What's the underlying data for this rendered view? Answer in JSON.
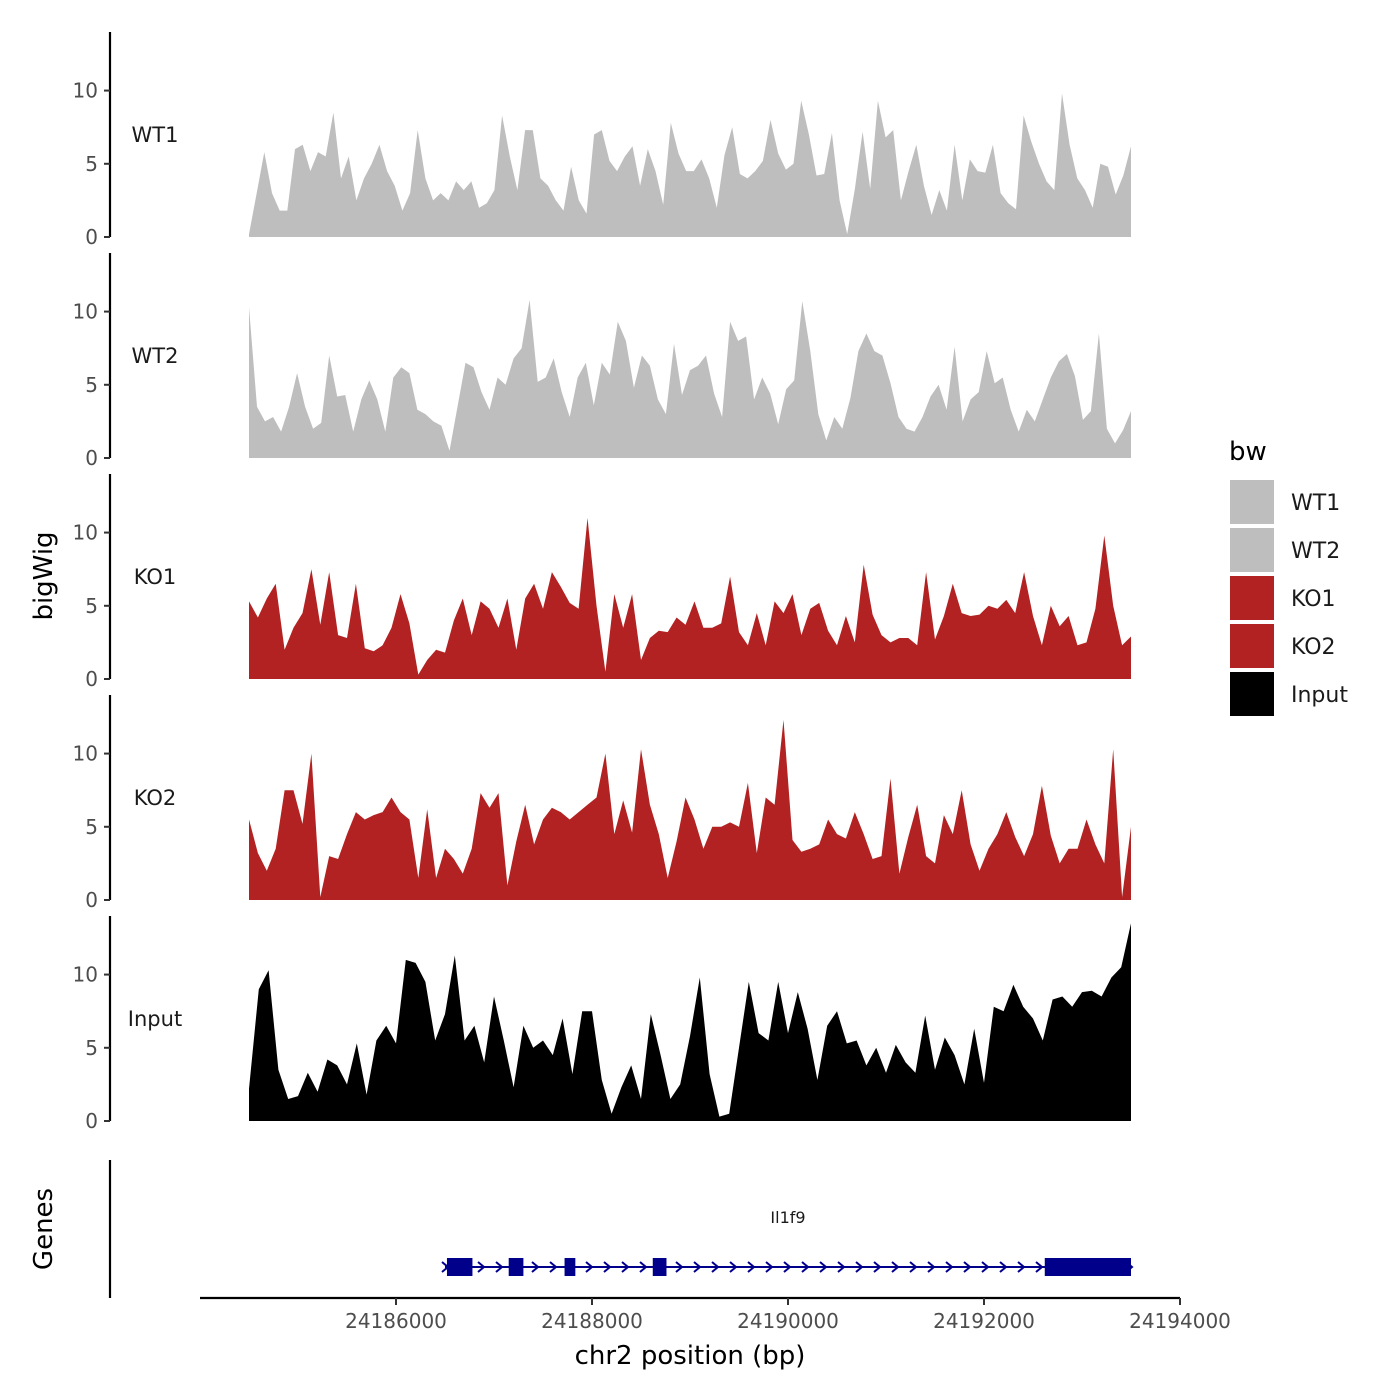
{
  "chart_data": {
    "type": "area",
    "title": "",
    "ylabel": "bigWig",
    "genes_label": "Genes",
    "xlabel": "chr2 position (bp)",
    "xlim": [
      24184000,
      24194000
    ],
    "data_range": [
      24184500,
      24193500
    ],
    "x_ticks": [
      "24186000",
      "24188000",
      "24190000",
      "24192000",
      "24194000"
    ],
    "x_tick_values": [
      24186000,
      24188000,
      24190000,
      24192000,
      24194000
    ],
    "ylim": [
      0,
      14
    ],
    "y_ticks": [
      "0",
      "5",
      "10"
    ],
    "y_tick_values": [
      0,
      5,
      10
    ],
    "legend": {
      "title": "bw",
      "position": "right",
      "entries": [
        {
          "label": "WT1",
          "color": "#bebebe"
        },
        {
          "label": "WT2",
          "color": "#bebebe"
        },
        {
          "label": "KO1",
          "color": "#b22222"
        },
        {
          "label": "KO2",
          "color": "#b22222"
        },
        {
          "label": "Input",
          "color": "#000000"
        }
      ]
    },
    "series": [
      {
        "name": "WT1",
        "color": "#bebebe",
        "values": [
          0.2,
          3,
          5.8,
          3,
          1.8,
          1.8,
          6,
          6.3,
          4.5,
          5.8,
          5.5,
          8.5,
          4,
          5.5,
          2.5,
          4,
          5,
          6.3,
          4.5,
          3.5,
          1.8,
          3,
          7.3,
          4,
          2.5,
          3,
          2.5,
          3.8,
          3.2,
          3.8,
          2,
          2.3,
          3.2,
          8.3,
          5.5,
          3.2,
          7.3,
          7.3,
          4,
          3.5,
          2.5,
          1.8,
          4.8,
          2.5,
          1.6,
          7,
          7.3,
          5.2,
          4.5,
          5.5,
          6.2,
          3.5,
          6,
          4.5,
          2.2,
          7.8,
          5.7,
          4.5,
          4.5,
          5.3,
          4,
          2,
          5.6,
          7.5,
          4.3,
          4,
          4.5,
          5.2,
          8,
          5.7,
          4.6,
          5,
          9.3,
          7,
          4.2,
          4.3,
          7.1,
          2.5,
          0.2,
          3.3,
          7.2,
          3.3,
          9.3,
          6.8,
          7.3,
          2.5,
          4.5,
          6.3,
          3.5,
          1.5,
          3.2,
          1.8,
          6.3,
          2.5,
          5.3,
          4.5,
          4.4,
          6.3,
          3,
          2.3,
          1.9,
          8.3,
          6.5,
          5,
          3.8,
          3.2,
          9.8,
          6.3,
          4,
          3.2,
          2,
          5,
          4.8,
          2.9,
          4.2,
          6.2
        ]
      },
      {
        "name": "WT2",
        "color": "#bebebe",
        "values": [
          10.3,
          3.5,
          2.5,
          2.8,
          1.8,
          3.5,
          5.8,
          3.5,
          2,
          2.4,
          7,
          4.2,
          4.3,
          1.8,
          4,
          5.3,
          4,
          1.8,
          5.5,
          6.2,
          5.8,
          3.3,
          3,
          2.5,
          2.2,
          0.5,
          3.5,
          6.5,
          6.2,
          4.5,
          3.3,
          5.5,
          5,
          6.8,
          7.5,
          10.8,
          5.2,
          5.5,
          6.8,
          4.5,
          2.8,
          5.5,
          6.5,
          3.6,
          6.5,
          5.7,
          9.3,
          8,
          4.8,
          7,
          6.3,
          4,
          3,
          7.8,
          4.3,
          6,
          6.3,
          7,
          4.4,
          2.8,
          9.3,
          8,
          8.3,
          4,
          5.5,
          4.4,
          2.3,
          4.7,
          5.3,
          10.7,
          7.3,
          3,
          1.2,
          2.8,
          2,
          4.1,
          7.3,
          8.5,
          7.3,
          7,
          5.1,
          2.8,
          2,
          1.8,
          2.8,
          4.2,
          5,
          3.3,
          7.6,
          2.5,
          4,
          4.5,
          7.3,
          5.1,
          5.5,
          3.3,
          1.8,
          3.3,
          2.5,
          4,
          5.5,
          6.6,
          7.1,
          5.6,
          2.6,
          3.2,
          8.5,
          2,
          1,
          1.9,
          3.2
        ]
      },
      {
        "name": "KO1",
        "color": "#b22222",
        "values": [
          5.3,
          4.2,
          5.5,
          6.5,
          2,
          3.5,
          4.5,
          7.5,
          3.7,
          7.3,
          3,
          2.8,
          6.5,
          2.1,
          1.9,
          2.3,
          3.5,
          5.8,
          3.8,
          0.3,
          1.3,
          2,
          1.8,
          4,
          5.5,
          3,
          5.3,
          4.8,
          3.5,
          5.5,
          2,
          5.5,
          6.5,
          4.8,
          7.3,
          6.3,
          5.2,
          4.8,
          11,
          5,
          0.5,
          5.8,
          3.5,
          5.8,
          1.3,
          2.8,
          3.3,
          3.2,
          4.2,
          3.7,
          5.3,
          3.5,
          3.5,
          3.8,
          7,
          3.2,
          2.3,
          4.5,
          2.3,
          5.3,
          4.5,
          5.8,
          3,
          4.8,
          5.2,
          3.3,
          2.3,
          4.3,
          2.5,
          7.8,
          4.4,
          3,
          2.5,
          2.8,
          2.8,
          2.3,
          7.3,
          2.7,
          4.3,
          6.5,
          4.5,
          4.3,
          4.4,
          5,
          4.8,
          5.4,
          4.5,
          7.3,
          4.3,
          2.3,
          5,
          3.6,
          4.3,
          2.3,
          2.5,
          4.8,
          9.8,
          5,
          2.3,
          2.9
        ]
      },
      {
        "name": "KO2",
        "color": "#b22222",
        "values": [
          5.5,
          3.2,
          2,
          3.5,
          7.5,
          7.5,
          5.2,
          10,
          0.2,
          3,
          2.8,
          4.5,
          6,
          5.5,
          5.8,
          6,
          7,
          6,
          5.5,
          1.5,
          6.2,
          1.5,
          3.5,
          2.8,
          1.8,
          3.5,
          7.3,
          6.3,
          7.3,
          1,
          4,
          6.5,
          3.8,
          5.5,
          6.3,
          6,
          5.5,
          6,
          6.5,
          7,
          10,
          4.5,
          6.8,
          4.6,
          10.3,
          6.5,
          4.5,
          1.5,
          4,
          7,
          5.5,
          3.5,
          5,
          5,
          5.3,
          5,
          8,
          3.2,
          7,
          6.5,
          12.3,
          4.1,
          3.3,
          3.5,
          3.8,
          5.5,
          4.5,
          4.2,
          6,
          4.5,
          2.8,
          3,
          8.3,
          1.8,
          4.3,
          6.5,
          3,
          2.5,
          5.8,
          4.5,
          7.5,
          3.8,
          2,
          3.5,
          4.5,
          6,
          4.3,
          3,
          4.5,
          7.8,
          4.4,
          2.5,
          3.5,
          3.5,
          5.5,
          3.8,
          2.5,
          10.3,
          0.2,
          5
        ]
      },
      {
        "name": "Input",
        "color": "#000000",
        "values": [
          2.2,
          9,
          10.3,
          3.5,
          1.5,
          1.7,
          3.3,
          2,
          4.2,
          3.8,
          2.5,
          5.3,
          1.8,
          5.5,
          6.5,
          5.3,
          11,
          10.8,
          9.5,
          5.5,
          7.3,
          11.3,
          5.5,
          6.5,
          4,
          8.5,
          5.5,
          2.3,
          6.5,
          5,
          5.5,
          4.5,
          7,
          3.2,
          7.5,
          7.5,
          2.8,
          0.5,
          2.3,
          3.8,
          1.5,
          7.3,
          4.5,
          1.5,
          2.5,
          5.8,
          9.8,
          3.2,
          0.3,
          0.5,
          5,
          9.5,
          6,
          5.5,
          9.5,
          6,
          8.8,
          6.3,
          2.8,
          6.5,
          7.5,
          5.3,
          5.5,
          3.8,
          5,
          3.3,
          5.2,
          4,
          3.3,
          7.2,
          3.5,
          5.7,
          4.5,
          2.5,
          6.3,
          2.6,
          7.8,
          7.5,
          9.3,
          7.8,
          7,
          5.5,
          8.3,
          8.5,
          7.8,
          8.8,
          8.9,
          8.5,
          9.8,
          10.5,
          13.5
        ]
      }
    ],
    "gene": {
      "name": "Il1f9",
      "color": "#00008b",
      "start": 24186500,
      "end": 24193500,
      "strand": "+",
      "exons": [
        [
          24186520,
          24186780
        ],
        [
          24187150,
          24187300
        ],
        [
          24187720,
          24187830
        ],
        [
          24188620,
          24188760
        ],
        [
          24192620,
          24193500
        ]
      ]
    }
  }
}
